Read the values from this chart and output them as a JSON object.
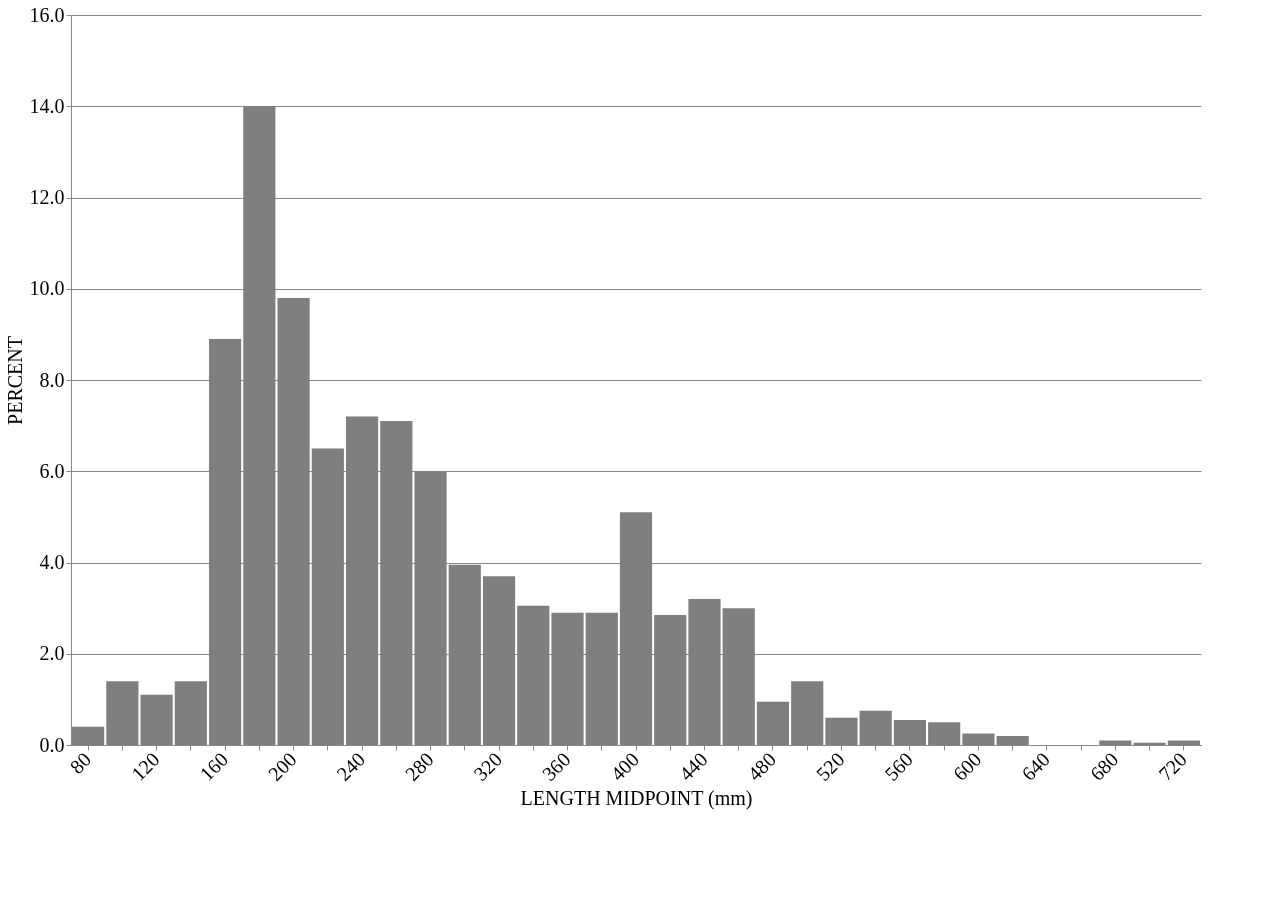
{
  "chart_data": {
    "type": "bar",
    "xlabel": "LENGTH MIDPOINT (mm)",
    "ylabel": "PERCENT",
    "categories": [
      "80",
      null,
      "120",
      null,
      "160",
      null,
      "200",
      null,
      "240",
      null,
      "280",
      null,
      "320",
      null,
      "360",
      null,
      "400",
      null,
      "440",
      null,
      "480",
      null,
      "520",
      null,
      "560",
      null,
      "600",
      null,
      "640",
      null,
      "680",
      null,
      "720"
    ],
    "values": [
      0.4,
      1.4,
      1.1,
      1.4,
      8.9,
      14.0,
      9.8,
      6.5,
      7.2,
      7.1,
      6.0,
      3.95,
      3.7,
      3.05,
      2.9,
      2.9,
      5.1,
      2.85,
      3.2,
      3.0,
      0.95,
      1.4,
      0.6,
      0.75,
      0.55,
      0.5,
      0.25,
      0.2,
      0,
      0,
      0.1,
      0.05,
      0.1
    ],
    "color": "#7f7f7f",
    "ylim": [
      0,
      16
    ],
    "yticks": [
      {
        "value": 0,
        "label": "0.0"
      },
      {
        "value": 2,
        "label": "2.0"
      },
      {
        "value": 4,
        "label": "4.0"
      },
      {
        "value": 6,
        "label": "6.0"
      },
      {
        "value": 8,
        "label": "8.0"
      },
      {
        "value": 10,
        "label": "10.0"
      },
      {
        "value": 12,
        "label": "12.0"
      },
      {
        "value": 14,
        "label": "14.0"
      },
      {
        "value": 16,
        "label": "16.0"
      }
    ],
    "grid": "y"
  }
}
